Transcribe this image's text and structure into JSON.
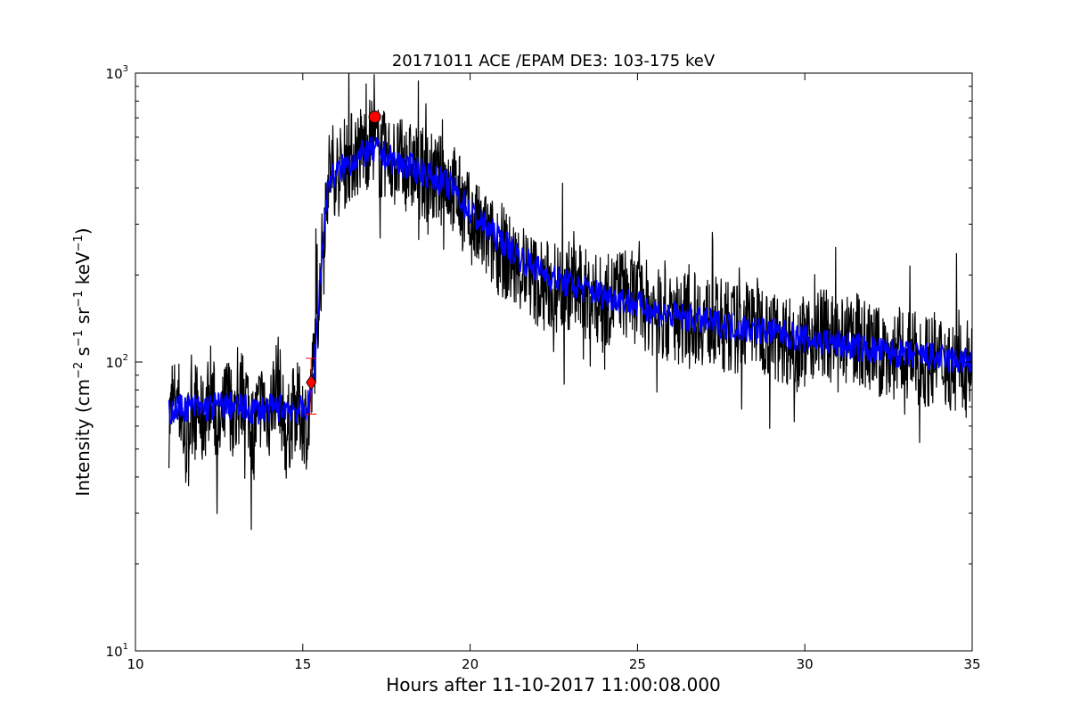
{
  "chart_data": {
    "type": "line",
    "title": "20171011 ACE /EPAM DE3: 103-175 keV",
    "xlabel": "Hours after 11-10-2017 11:00:08.000",
    "ylabel": {
      "prefix": "Intensity (cm",
      "sup1": "−2",
      "mid1": " s",
      "sup2": "−1",
      "mid2": " sr",
      "sup3": "−1",
      "mid3": " keV",
      "sup4": "−1",
      "suffix": ")"
    },
    "xlim": [
      10,
      35
    ],
    "ylim": [
      10,
      1000
    ],
    "yscale": "log",
    "grid": false,
    "x_ticks": [
      10,
      15,
      20,
      25,
      30,
      35
    ],
    "x_tick_labels": [
      "10",
      "15",
      "20",
      "25",
      "30",
      "35"
    ],
    "y_ticks": [
      10,
      100,
      1000
    ],
    "y_tick_labels": [
      {
        "base": "10",
        "exp": "1"
      },
      {
        "base": "10",
        "exp": "2"
      },
      {
        "base": "10",
        "exp": "3"
      }
    ],
    "series": [
      {
        "style": "raw",
        "color": "#000000",
        "x": [
          11.0,
          11.25,
          11.5,
          11.75,
          12.0,
          12.25,
          12.5,
          12.75,
          13.0,
          13.25,
          13.5,
          13.75,
          14.0,
          14.25,
          14.5,
          14.75,
          15.0,
          15.15,
          15.25,
          15.35,
          15.45,
          15.55,
          15.65,
          15.75,
          15.9,
          16.1,
          16.3,
          16.5,
          16.7,
          16.9,
          17.1,
          17.3,
          17.5,
          17.75,
          18.0,
          18.25,
          18.5,
          18.75,
          19.0,
          19.25,
          19.5,
          19.75,
          20.0,
          20.25,
          20.5,
          20.75,
          21.0,
          21.25,
          21.5,
          21.75,
          22.0,
          22.5,
          23.0,
          23.5,
          24.0,
          24.5,
          25.0,
          25.5,
          26.0,
          26.5,
          27.0,
          27.5,
          28.0,
          28.5,
          29.0,
          29.5,
          30.0,
          30.5,
          31.0,
          31.5,
          32.0,
          32.5,
          33.0,
          33.5,
          34.0,
          34.5,
          35.0
        ],
        "y": [
          62,
          78,
          52,
          74,
          60,
          82,
          55,
          76,
          63,
          84,
          58,
          72,
          66,
          90,
          54,
          71,
          65,
          60,
          75,
          110,
          150,
          210,
          320,
          440,
          470,
          450,
          500,
          520,
          540,
          560,
          600,
          520,
          510,
          490,
          480,
          470,
          450,
          440,
          420,
          430,
          400,
          350,
          310,
          285,
          270,
          250,
          240,
          220,
          210,
          200,
          190,
          180,
          185,
          170,
          160,
          175,
          165,
          150,
          140,
          145,
          140,
          135,
          130,
          140,
          125,
          120,
          118,
          130,
          112,
          122,
          110,
          105,
          108,
          100,
          104,
          95,
          100
        ]
      },
      {
        "style": "smoothed",
        "color": "#0000ff",
        "x": [
          11.0,
          11.5,
          12.0,
          12.5,
          13.0,
          13.5,
          14.0,
          14.5,
          15.0,
          15.2,
          15.3,
          15.4,
          15.5,
          15.6,
          15.7,
          15.8,
          16.0,
          16.3,
          16.6,
          16.9,
          17.2,
          17.5,
          18.0,
          18.5,
          19.0,
          19.5,
          20.0,
          20.5,
          21.0,
          21.5,
          22.0,
          22.5,
          23.0,
          23.5,
          24.0,
          24.5,
          25.0,
          25.5,
          26.0,
          26.5,
          27.0,
          27.5,
          28.0,
          28.5,
          29.0,
          29.5,
          30.0,
          30.5,
          31.0,
          31.5,
          32.0,
          32.5,
          33.0,
          33.5,
          34.0,
          34.5,
          35.0
        ],
        "y": [
          68,
          70,
          69,
          71,
          70,
          68,
          69,
          70,
          68,
          72,
          85,
          120,
          180,
          260,
          360,
          430,
          450,
          480,
          510,
          530,
          540,
          510,
          480,
          460,
          430,
          400,
          330,
          290,
          260,
          230,
          210,
          195,
          185,
          178,
          170,
          165,
          158,
          150,
          145,
          142,
          138,
          135,
          132,
          130,
          127,
          124,
          120,
          118,
          115,
          113,
          110,
          108,
          106,
          105,
          103,
          101,
          100
        ]
      }
    ],
    "markers": [
      {
        "type": "circle",
        "x": 17.15,
        "y": 705,
        "color": "#ff0000"
      },
      {
        "type": "diamond",
        "x": 15.25,
        "y": 85,
        "color": "#ff0000"
      }
    ],
    "errorbar": {
      "x": 15.25,
      "y_low": 66,
      "y_high": 103,
      "color": "#ff0000"
    }
  }
}
